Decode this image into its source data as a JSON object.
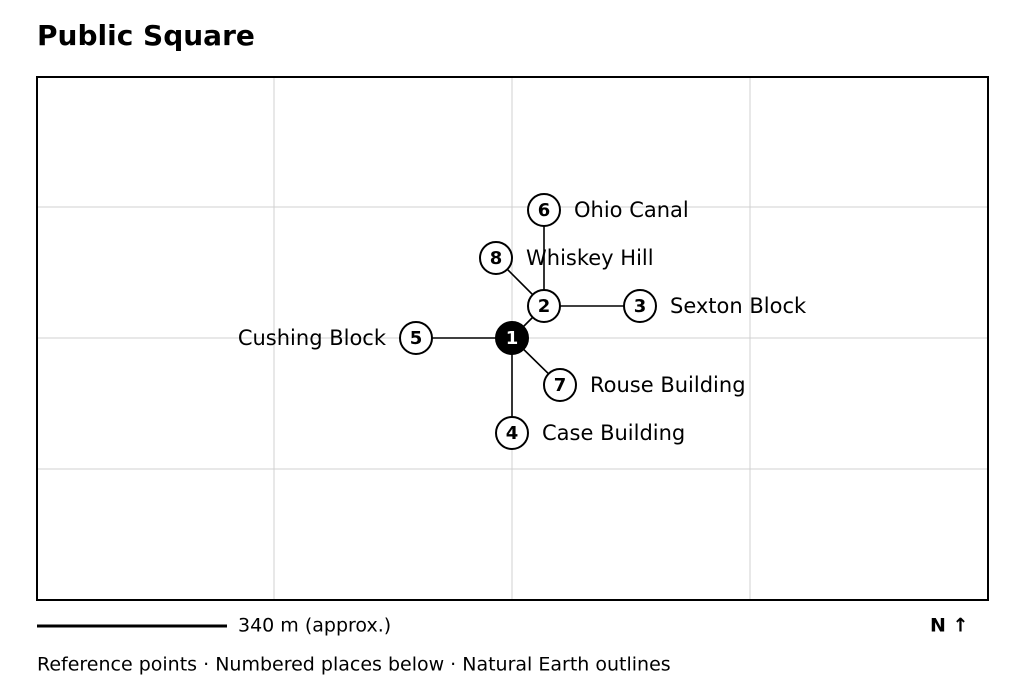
{
  "title": "Public Square",
  "places": [
    {
      "number": 1
    },
    {
      "number": 2
    },
    {
      "number": 3,
      "label": "Sexton Block"
    },
    {
      "number": 4,
      "label": "Case Building"
    },
    {
      "number": 5,
      "label": "Cushing Block"
    },
    {
      "number": 6,
      "label": "Ohio Canal"
    },
    {
      "number": 7,
      "label": "Rouse Building"
    },
    {
      "number": 8,
      "label": "Whiskey Hill"
    }
  ],
  "scale": "340 m (approx.)",
  "north": "N ↑",
  "footer": "Reference points · Numbered places below · Natural Earth outlines"
}
